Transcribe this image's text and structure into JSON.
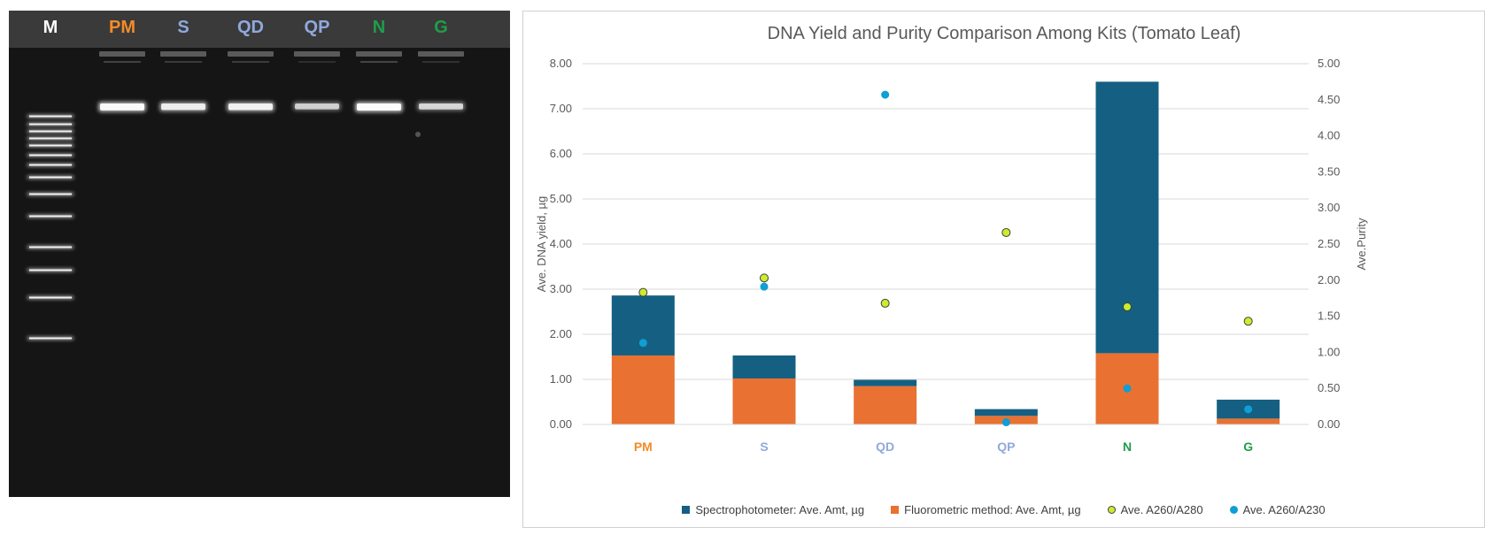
{
  "gel": {
    "lanes": [
      {
        "label": "M",
        "color": "#ffffff"
      },
      {
        "label": "PM",
        "color": "#f28c28"
      },
      {
        "label": "S",
        "color": "#8fa9dc"
      },
      {
        "label": "QD",
        "color": "#8fa9dc"
      },
      {
        "label": "QP",
        "color": "#8fa9dc"
      },
      {
        "label": "N",
        "color": "#1e9e4a"
      },
      {
        "label": "G",
        "color": "#1e9e4a"
      }
    ],
    "band_intensity": {
      "PM": 0.95,
      "S": 0.8,
      "QD": 0.85,
      "QP": 0.55,
      "N": 1.0,
      "G": 0.6
    }
  },
  "chart_data": {
    "type": "bar",
    "stacked": true,
    "title": "DNA Yield and Purity Comparison Among Kits (Tomato Leaf)",
    "categories": [
      "PM",
      "S",
      "QD",
      "QP",
      "N",
      "G"
    ],
    "category_colors": [
      "#f28c28",
      "#8fa9dc",
      "#8fa9dc",
      "#8fa9dc",
      "#1e9e4a",
      "#1e9e4a"
    ],
    "ylabel": "Ave. DNA yield, µg",
    "y2label": "Ave.Purity",
    "ylim": [
      0,
      8
    ],
    "y2lim": [
      0,
      5
    ],
    "yticks": [
      "0.00",
      "1.00",
      "2.00",
      "3.00",
      "4.00",
      "5.00",
      "6.00",
      "7.00",
      "8.00"
    ],
    "y2ticks": [
      "0.00",
      "0.50",
      "1.00",
      "1.50",
      "2.00",
      "2.50",
      "3.00",
      "3.50",
      "4.00",
      "4.50",
      "5.00"
    ],
    "grid": true,
    "legend_position": "bottom",
    "series": [
      {
        "name": "Fluorometric method: Ave. Amt, µg",
        "kind": "bar",
        "axis": "left",
        "color": "#e97132",
        "values": [
          1.53,
          1.02,
          0.85,
          0.19,
          1.58,
          0.13
        ]
      },
      {
        "name": "Spectrophotometer: Ave. Amt, µg",
        "kind": "bar",
        "axis": "left",
        "color": "#156082",
        "values": [
          1.33,
          0.51,
          0.14,
          0.15,
          6.02,
          0.42
        ]
      },
      {
        "name": "Ave. A260/A280",
        "kind": "scatter",
        "axis": "right",
        "color": "#ccec2e",
        "values": [
          1.83,
          2.03,
          1.68,
          2.66,
          1.63,
          1.43
        ]
      },
      {
        "name": "Ave. A260/A230",
        "kind": "scatter",
        "axis": "right",
        "color": "#0f9ed5",
        "values": [
          1.13,
          1.91,
          4.57,
          0.03,
          0.5,
          0.21
        ]
      }
    ],
    "legend_order": [
      1,
      0,
      2,
      3
    ]
  }
}
